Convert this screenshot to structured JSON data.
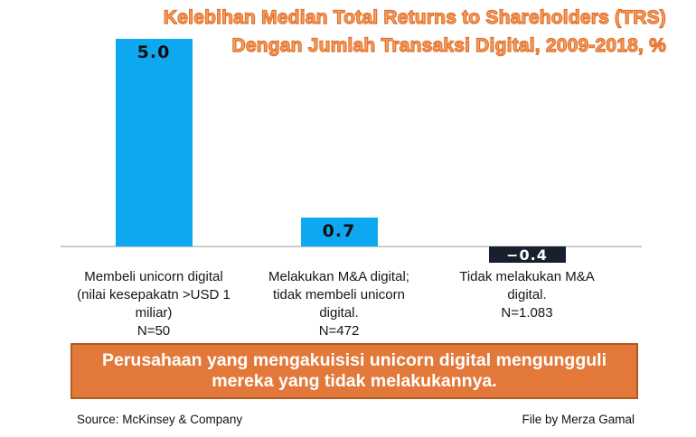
{
  "title": {
    "line1": "Kelebihan Median Total Returns to Shareholders (TRS)",
    "line2": "Dengan Jumlah Transaksi Digital, 2009-2018, %"
  },
  "chart_data": {
    "type": "bar",
    "title": "Kelebihan Median Total Returns to Shareholders (TRS) Dengan Jumlah Transaksi Digital, 2009-2018, %",
    "categories": [
      "Membeli unicorn digital (nilai kesepakatn >USD 1 miliar) N=50",
      "Melakukan M&A digital; tidak membeli unicorn digital. N=472",
      "Tidak melakukan M&A digital. N=1.083"
    ],
    "category_lines": [
      [
        "Membeli unicorn digital",
        "(nilai kesepakatn >USD 1",
        "miliar)",
        "N=50"
      ],
      [
        "Melakukan M&A digital;",
        "tidak membeli unicorn",
        "digital.",
        "N=472"
      ],
      [
        "Tidak melakukan M&A",
        "digital.",
        "N=1.083"
      ]
    ],
    "values": [
      5.0,
      0.7,
      -0.4
    ],
    "value_labels": [
      "5.0",
      "0.7",
      "−0.4"
    ],
    "bar_colors": [
      "#0ea8f0",
      "#0ea8f0",
      "#17202c"
    ],
    "value_label_colors": [
      "#101010",
      "#101010",
      "#ffffff"
    ],
    "xlabel": "",
    "ylabel": "",
    "ylim": [
      -0.4,
      5.0
    ],
    "grid": false,
    "legend": false,
    "baseline": 0
  },
  "banner": {
    "text": "Perusahaan yang mengakuisisi unicorn digital mengungguli\nmereka yang tidak melakukannya."
  },
  "footer": {
    "source": "Source: McKinsey & Company",
    "credit": "File by Merza Gamal"
  },
  "colors": {
    "bar_cyan": "#0ea8f0",
    "bar_dark_navy": "#17202c",
    "banner_orange": "#e2793a",
    "banner_border": "#b05a1e",
    "title_fill": "#f6a465",
    "title_outline": "#e26f2a",
    "axis_gray": "#cbcbcb"
  }
}
